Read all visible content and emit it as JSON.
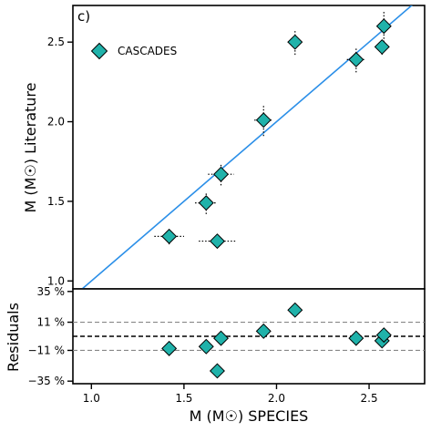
{
  "chart_data": [
    {
      "type": "scatter",
      "panel_label": "c)",
      "xlim": [
        0.9,
        2.8
      ],
      "ylim": [
        0.95,
        2.73
      ],
      "ylabel": "M (M☉) Literature",
      "yticks": [
        "1.0",
        "1.5",
        "2.0",
        "2.5"
      ],
      "ytick_values": [
        1.0,
        1.5,
        2.0,
        2.5
      ],
      "legend": {
        "label": "CASCADES",
        "placement": "top-left"
      },
      "reference_line": "one-to-one",
      "colors": {
        "marker": "#20b2aa",
        "line": "#2b8fe8",
        "errorbar": "#000000"
      },
      "series": [
        {
          "name": "CASCADES",
          "points": [
            {
              "x": 1.42,
              "y": 1.28,
              "xerr": 0.08,
              "yerr": 0.05
            },
            {
              "x": 1.62,
              "y": 1.49,
              "xerr": 0.06,
              "yerr": 0.07
            },
            {
              "x": 1.68,
              "y": 1.25,
              "xerr": 0.1,
              "yerr": 0.04
            },
            {
              "x": 1.7,
              "y": 1.67,
              "xerr": 0.07,
              "yerr": 0.07
            },
            {
              "x": 1.93,
              "y": 2.01,
              "xerr": 0.05,
              "yerr": 0.1
            },
            {
              "x": 2.1,
              "y": 2.5,
              "xerr": 0.04,
              "yerr": 0.08
            },
            {
              "x": 2.43,
              "y": 2.39,
              "xerr": 0.05,
              "yerr": 0.08
            },
            {
              "x": 2.57,
              "y": 2.47,
              "xerr": 0.03,
              "yerr": 0.05
            },
            {
              "x": 2.58,
              "y": 2.6,
              "xerr": 0.03,
              "yerr": 0.1
            }
          ]
        }
      ]
    },
    {
      "type": "scatter",
      "xlim": [
        0.9,
        2.8
      ],
      "ylim": [
        -37,
        37
      ],
      "xlabel": "M (M☉) SPECIES",
      "ylabel": "Residuals",
      "xticks": [
        "1.0",
        "1.5",
        "2.0",
        "2.5"
      ],
      "xtick_values": [
        1.0,
        1.5,
        2.0,
        2.5
      ],
      "yticks": [
        "35 %",
        "11 %",
        "−11 %",
        "−35 %"
      ],
      "ytick_values": [
        35,
        11,
        -11,
        -35
      ],
      "reference_lines": [
        {
          "y": 11,
          "style": "dashed",
          "color": "#888888"
        },
        {
          "y": 0,
          "style": "dashed",
          "color": "#000000"
        },
        {
          "y": -11,
          "style": "dashed",
          "color": "#888888"
        }
      ],
      "series": [
        {
          "name": "CASCADES",
          "points": [
            {
              "x": 1.42,
              "y": -9.5
            },
            {
              "x": 1.62,
              "y": -8.0
            },
            {
              "x": 1.68,
              "y": -27.0
            },
            {
              "x": 1.7,
              "y": -1.5
            },
            {
              "x": 1.93,
              "y": 4.0
            },
            {
              "x": 2.1,
              "y": 20.5
            },
            {
              "x": 2.43,
              "y": -1.5
            },
            {
              "x": 2.57,
              "y": -3.5
            },
            {
              "x": 2.58,
              "y": 1.0
            }
          ]
        }
      ]
    }
  ]
}
